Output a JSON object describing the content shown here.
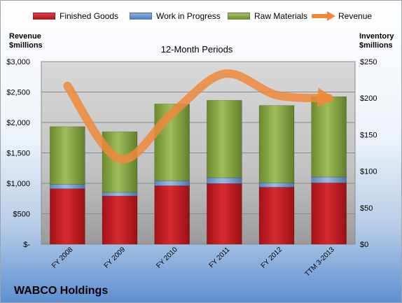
{
  "legend": {
    "finished_goods": "Finished Goods",
    "work_in_progress": "Work in Progress",
    "raw_materials": "Raw Materials",
    "revenue": "Revenue"
  },
  "left_axis_title": [
    "Revenue",
    "$millions"
  ],
  "right_axis_title": [
    "Inventory",
    "$millions"
  ],
  "subtitle": "12-Month Periods",
  "company": "WABCO Holdings",
  "colors": {
    "finished_goods": "#c0181f",
    "work_in_progress": "#4f81bd",
    "raw_materials": "#7a9b3a",
    "revenue": "#f0883a",
    "plot_background": "#cfcfcf"
  },
  "chart_data": {
    "type": "bar",
    "stacked": true,
    "categories": [
      "FY 2008",
      "FY 2009",
      "FY 2010",
      "FY 2011",
      "FY 2012",
      "TTM 3-2013"
    ],
    "series": [
      {
        "name": "Finished Goods",
        "axis": "right",
        "values": [
          76,
          66,
          80,
          83,
          78,
          84
        ]
      },
      {
        "name": "Work in Progress",
        "axis": "right",
        "values": [
          6,
          5,
          7,
          8,
          6,
          8
        ]
      },
      {
        "name": "Raw Materials",
        "axis": "right",
        "values": [
          79,
          83,
          105,
          106,
          106,
          110
        ]
      },
      {
        "name": "Revenue",
        "axis": "left",
        "type": "line",
        "values": [
          2600,
          1400,
          2150,
          2800,
          2450,
          2400
        ]
      }
    ],
    "left_axis": {
      "ylim": [
        0,
        3000
      ],
      "ticks": [
        "$-",
        "$500",
        "$1,000",
        "$1,500",
        "$2,000",
        "$2,500",
        "$3,000"
      ]
    },
    "right_axis": {
      "ylim": [
        0,
        250
      ],
      "ticks": [
        "$0",
        "$50",
        "$100",
        "$150",
        "$200",
        "$250"
      ]
    },
    "grid": true,
    "legend_position": "top"
  }
}
